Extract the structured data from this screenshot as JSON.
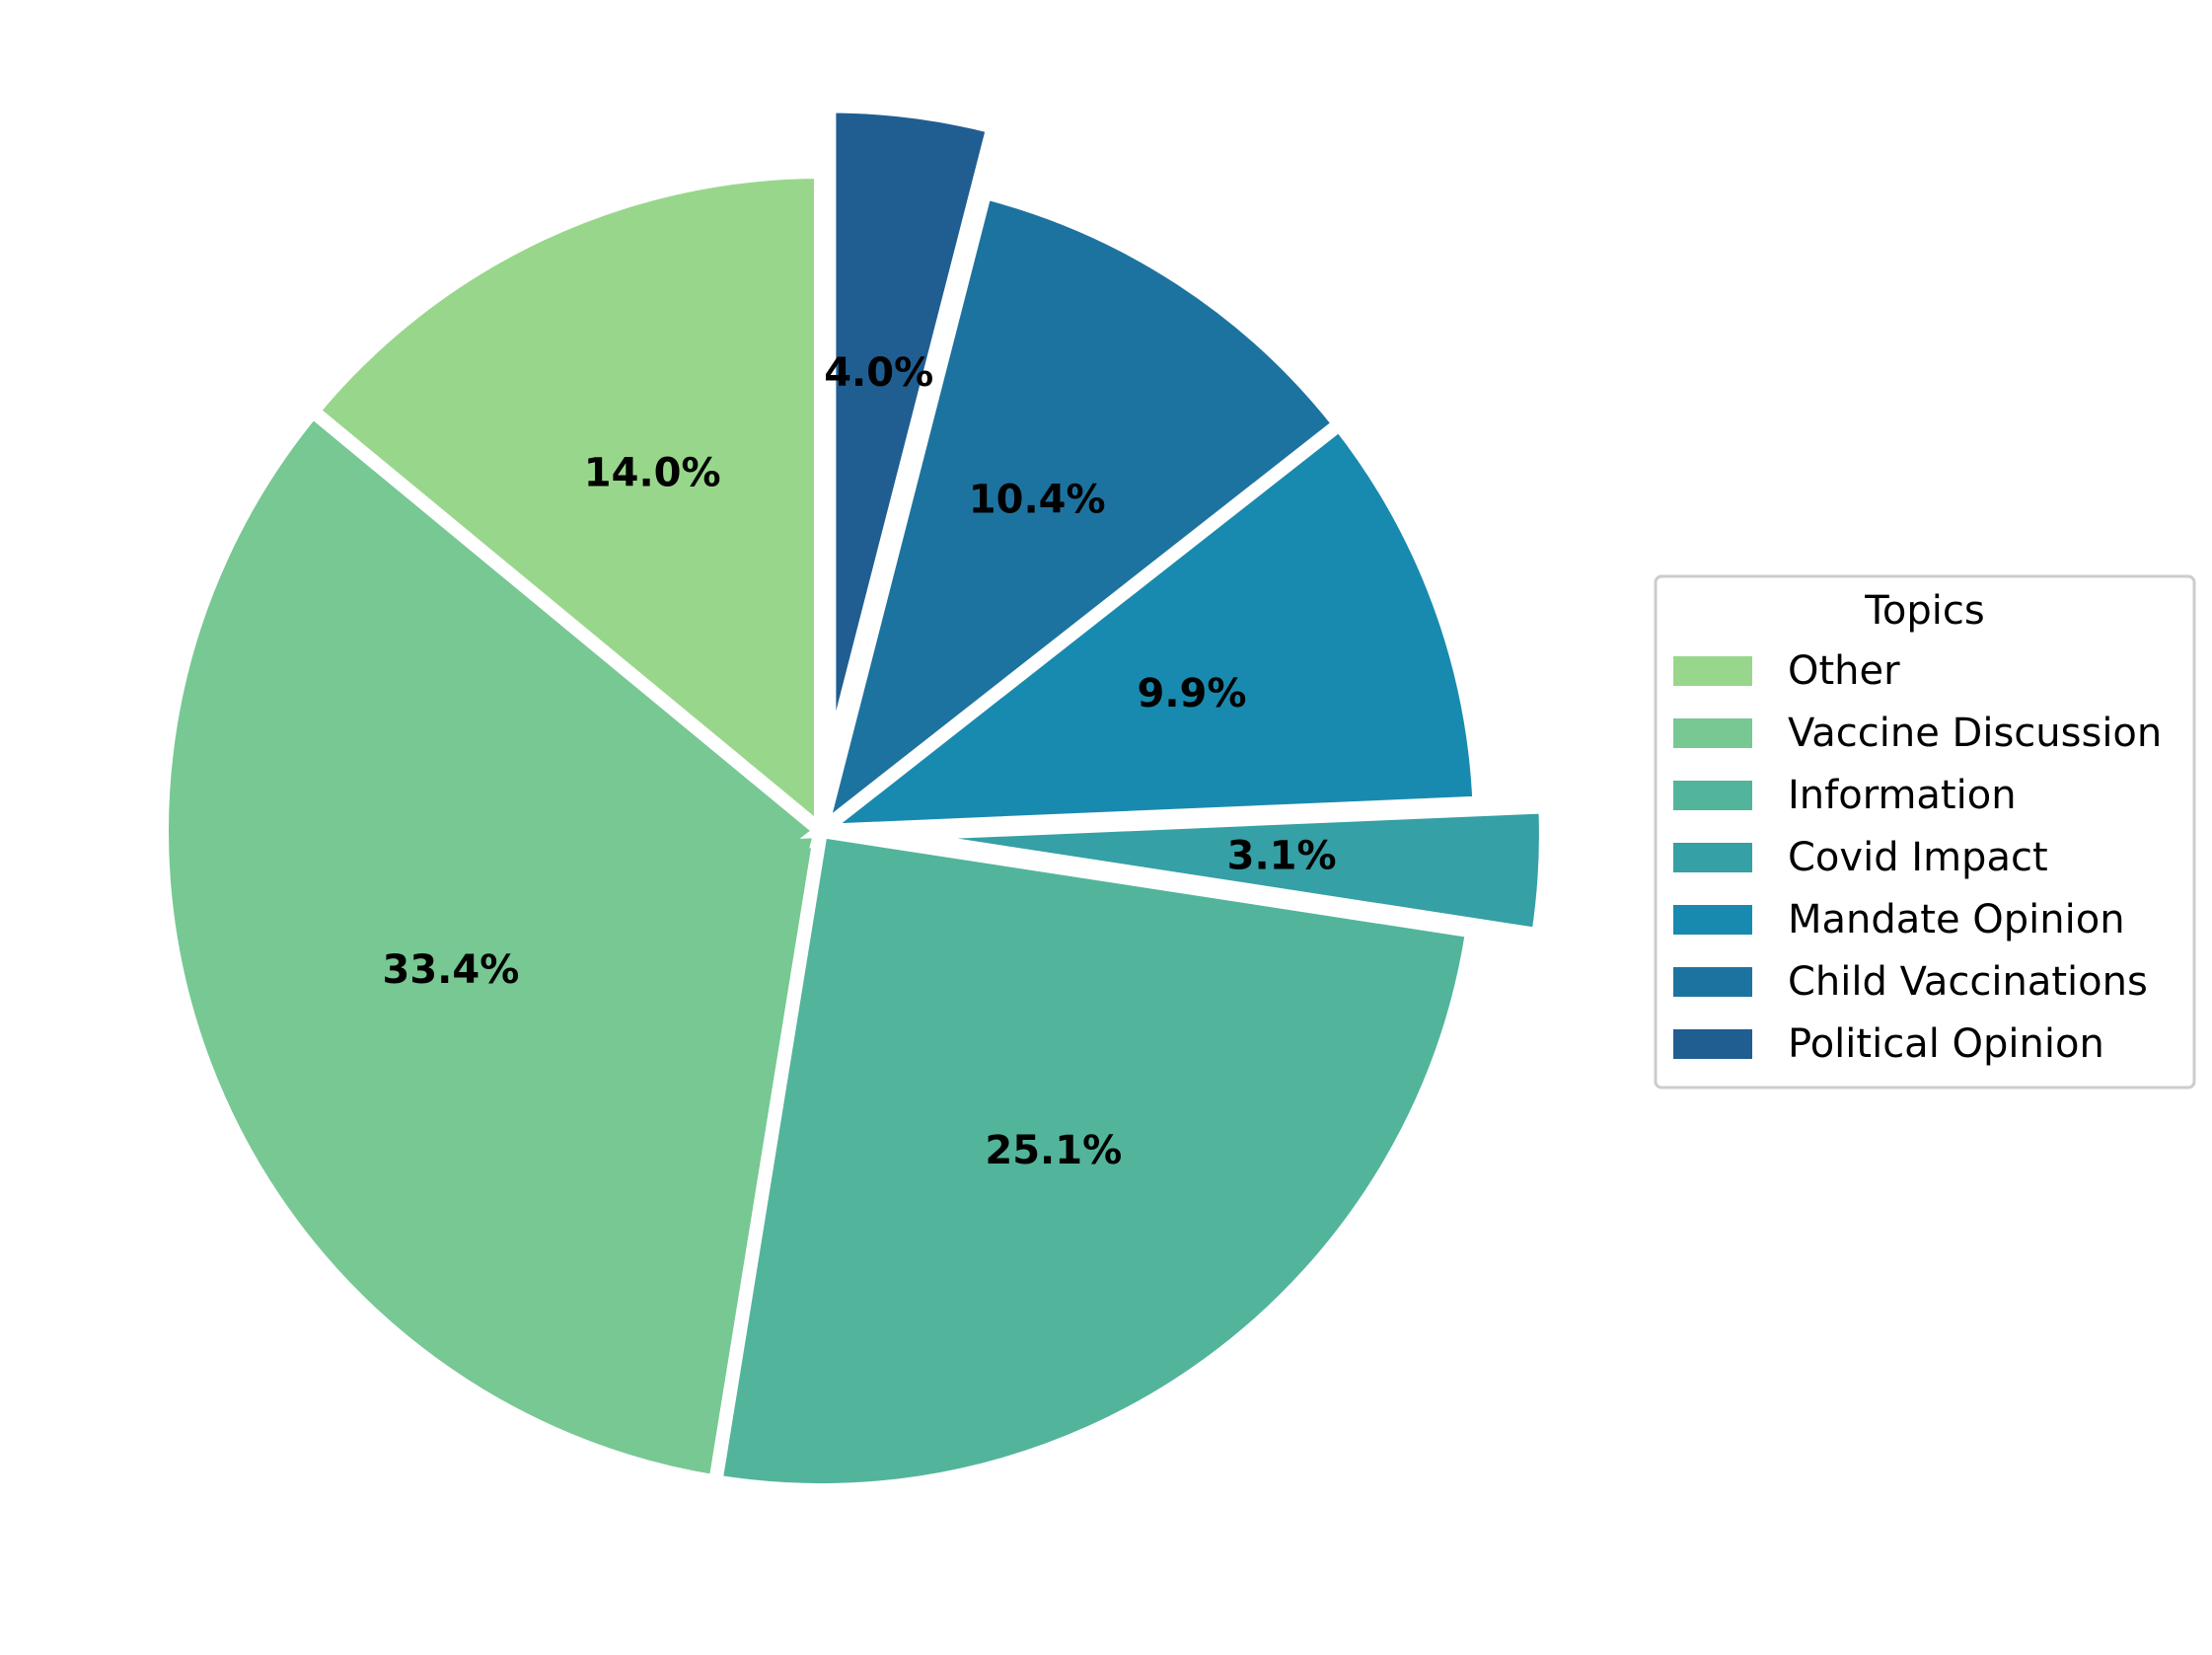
{
  "chart_data": {
    "type": "pie",
    "title": "",
    "start_angle_deg": 90,
    "direction": "counterclockwise",
    "slices": [
      {
        "label": "Other",
        "value": 14.0,
        "pct_label": "14.0%",
        "color": "#98d78b",
        "explode": false
      },
      {
        "label": "Vaccine Discussion",
        "value": 33.4,
        "pct_label": "33.4%",
        "color": "#77c893",
        "explode": false
      },
      {
        "label": "Information",
        "value": 25.1,
        "pct_label": "25.1%",
        "color": "#52b59b",
        "explode": false
      },
      {
        "label": "Covid Impact",
        "value": 3.1,
        "pct_label": "3.1%",
        "color": "#35a0a5",
        "explode": true
      },
      {
        "label": "Mandate Opinion",
        "value": 9.9,
        "pct_label": "9.9%",
        "color": "#198aaf",
        "explode": false
      },
      {
        "label": "Child Vaccinations",
        "value": 10.4,
        "pct_label": "10.4%",
        "color": "#1d739f",
        "explode": false
      },
      {
        "label": "Political Opinion",
        "value": 4.0,
        "pct_label": "4.0%",
        "color": "#205e91",
        "explode": true
      }
    ],
    "legend": {
      "title": "Topics",
      "placement": "center-right"
    }
  }
}
